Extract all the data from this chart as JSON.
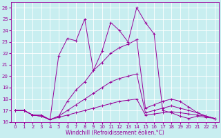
{
  "xlabel": "Windchill (Refroidissement éolien,°C)",
  "background_color": "#c8eef0",
  "grid_color": "#ffffff",
  "line_color": "#990099",
  "xlim": [
    -0.5,
    23.5
  ],
  "ylim": [
    16,
    26.5
  ],
  "xticks": [
    0,
    1,
    2,
    3,
    4,
    5,
    6,
    7,
    8,
    9,
    10,
    11,
    12,
    13,
    14,
    15,
    16,
    17,
    18,
    19,
    20,
    21,
    22,
    23
  ],
  "yticks": [
    16,
    17,
    18,
    19,
    20,
    21,
    22,
    23,
    24,
    25,
    26
  ],
  "lines": [
    {
      "x": [
        0,
        1,
        2,
        3,
        4,
        5,
        6,
        7,
        8,
        9,
        10,
        11,
        12,
        13,
        14,
        15,
        16,
        17,
        18,
        19,
        20,
        21,
        22,
        23
      ],
      "y": [
        17,
        17,
        16.6,
        16.6,
        16.2,
        21.8,
        23.3,
        23.1,
        25.0,
        20.5,
        22.2,
        24.7,
        24.0,
        23.0,
        26.0,
        24.7,
        23.7,
        17.0,
        16.8,
        16.5,
        16.3,
        16.5,
        16.4,
        16.3
      ]
    },
    {
      "x": [
        0,
        1,
        2,
        3,
        4,
        5,
        6,
        7,
        8,
        9,
        10,
        11,
        12,
        13,
        14,
        15,
        16,
        17,
        18,
        19,
        20,
        21,
        22,
        23
      ],
      "y": [
        17,
        17,
        16.6,
        16.5,
        16.2,
        16.5,
        17.8,
        18.8,
        19.5,
        20.5,
        21.2,
        22.0,
        22.5,
        22.8,
        23.2,
        17.2,
        17.5,
        17.8,
        18.0,
        17.8,
        17.3,
        16.8,
        16.5,
        16.3
      ]
    },
    {
      "x": [
        0,
        1,
        2,
        3,
        4,
        5,
        6,
        7,
        8,
        9,
        10,
        11,
        12,
        13,
        14,
        15,
        16,
        17,
        18,
        19,
        20,
        21,
        22,
        23
      ],
      "y": [
        17,
        17,
        16.6,
        16.5,
        16.2,
        16.5,
        17.0,
        17.5,
        18.0,
        18.5,
        19.0,
        19.5,
        19.8,
        20.0,
        20.2,
        16.8,
        17.0,
        17.2,
        17.4,
        17.2,
        17.0,
        16.8,
        16.5,
        16.3
      ]
    },
    {
      "x": [
        0,
        1,
        2,
        3,
        4,
        5,
        6,
        7,
        8,
        9,
        10,
        11,
        12,
        13,
        14,
        15,
        16,
        17,
        18,
        19,
        20,
        21,
        22,
        23
      ],
      "y": [
        17,
        17,
        16.6,
        16.5,
        16.2,
        16.4,
        16.6,
        16.8,
        17.0,
        17.2,
        17.4,
        17.6,
        17.8,
        17.9,
        18.0,
        16.6,
        16.7,
        16.8,
        16.9,
        16.8,
        16.7,
        16.6,
        16.5,
        16.3
      ]
    }
  ],
  "xlabel_fontsize": 5.5,
  "tick_fontsize": 5,
  "linewidth": 0.7,
  "markersize": 3
}
